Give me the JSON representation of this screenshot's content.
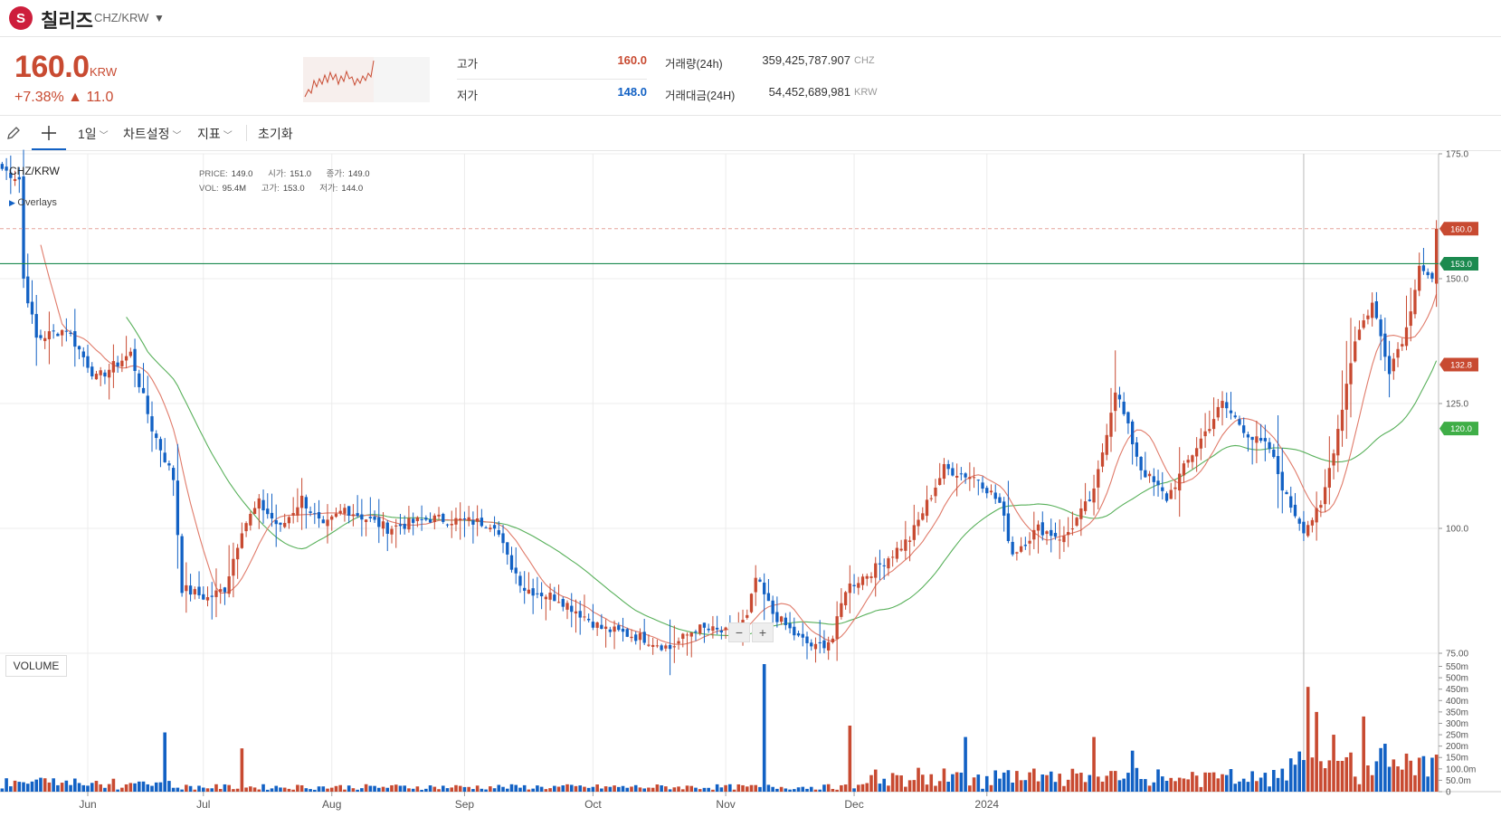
{
  "header": {
    "coin_name": "칠리즈",
    "pair": "CHZ/KRW",
    "logo_glyph": "S"
  },
  "ticker": {
    "price": "160.0",
    "price_unit": "KRW",
    "change": "+7.38% ▲ 11.0",
    "high_label": "고가",
    "high_value": "160.0",
    "low_label": "저가",
    "low_value": "148.0",
    "volume_label": "거래량(24h)",
    "volume_value": "359,425,787.907",
    "volume_unit": "CHZ",
    "amount_label": "거래대금(24H)",
    "amount_value": "54,452,689,981",
    "amount_unit": "KRW"
  },
  "toolbar": {
    "draw_icon": "pencil-icon",
    "crosshair_icon": "crosshair-icon",
    "interval": "1일",
    "chart_settings": "차트설정",
    "indicators": "지표",
    "reset": "초기화"
  },
  "legend": {
    "symbol": "CHZ/KRW",
    "overlays": "Overlays",
    "price_k": "PRICE:",
    "price_v": "149.0",
    "open_k": "시가:",
    "open_v": "151.0",
    "close_k": "종가:",
    "close_v": "149.0",
    "vol_k": "VOL:",
    "vol_v": "95.4M",
    "high_k": "고가:",
    "high_v": "153.0",
    "low_k": "저가:",
    "low_v": "144.0"
  },
  "volume_panel_label": "VOLUME",
  "colors": {
    "up": "#c84a31",
    "down": "#1261c4",
    "ma_short": "#e07b6a",
    "ma_long": "#58b05a",
    "hline": "#1c8a4f"
  },
  "chart_data": {
    "type": "candlestick",
    "price_axis": {
      "min": 75,
      "max": 175,
      "ticks": [
        "175.0",
        "150.0",
        "125.0",
        "100.0",
        "75.00"
      ]
    },
    "volume_axis": {
      "ticks": [
        "550m",
        "500m",
        "450m",
        "400m",
        "350m",
        "300m",
        "250m",
        "200m",
        "150m",
        "100.0m",
        "50.0m",
        "0"
      ]
    },
    "months": [
      "Jun",
      "Jul",
      "Aug",
      "Sep",
      "Oct",
      "Nov",
      "Dec",
      "2024"
    ],
    "markers": {
      "last": "160.0",
      "line": "153.0",
      "ma_short": "132.8",
      "ma_long": "120.0"
    },
    "close_anchors": [
      [
        0,
        172
      ],
      [
        4,
        170
      ],
      [
        5,
        150
      ],
      [
        8,
        138
      ],
      [
        15,
        140
      ],
      [
        22,
        130
      ],
      [
        30,
        135
      ],
      [
        35,
        120
      ],
      [
        40,
        110
      ],
      [
        42,
        88
      ],
      [
        48,
        86
      ],
      [
        52,
        88
      ],
      [
        56,
        100
      ],
      [
        60,
        105
      ],
      [
        65,
        100
      ],
      [
        70,
        106
      ],
      [
        75,
        100
      ],
      [
        80,
        104
      ],
      [
        90,
        100
      ],
      [
        100,
        102
      ],
      [
        115,
        101
      ],
      [
        118,
        94
      ],
      [
        122,
        88
      ],
      [
        130,
        86
      ],
      [
        140,
        80
      ],
      [
        150,
        78
      ],
      [
        156,
        76
      ],
      [
        162,
        80
      ],
      [
        170,
        79
      ],
      [
        174,
        82
      ],
      [
        176,
        90
      ],
      [
        180,
        83
      ],
      [
        186,
        78
      ],
      [
        190,
        76
      ],
      [
        194,
        78
      ],
      [
        197,
        88
      ],
      [
        204,
        92
      ],
      [
        212,
        98
      ],
      [
        220,
        112
      ],
      [
        228,
        110
      ],
      [
        233,
        105
      ],
      [
        236,
        95
      ],
      [
        242,
        100
      ],
      [
        248,
        98
      ],
      [
        255,
        107
      ],
      [
        260,
        128
      ],
      [
        266,
        112
      ],
      [
        272,
        106
      ],
      [
        278,
        115
      ],
      [
        285,
        125
      ],
      [
        292,
        118
      ],
      [
        296,
        116
      ],
      [
        300,
        106
      ],
      [
        304,
        100
      ],
      [
        308,
        104
      ],
      [
        312,
        120
      ],
      [
        316,
        138
      ],
      [
        320,
        145
      ],
      [
        324,
        132
      ],
      [
        328,
        140
      ],
      [
        331,
        153
      ],
      [
        334,
        149
      ],
      [
        335,
        160
      ]
    ],
    "volume_events": [
      [
        38,
        260
      ],
      [
        56,
        190
      ],
      [
        178,
        560
      ],
      [
        198,
        290
      ],
      [
        225,
        240
      ],
      [
        255,
        240
      ],
      [
        264,
        180
      ],
      [
        305,
        460
      ],
      [
        307,
        350
      ],
      [
        311,
        250
      ],
      [
        318,
        330
      ]
    ]
  }
}
